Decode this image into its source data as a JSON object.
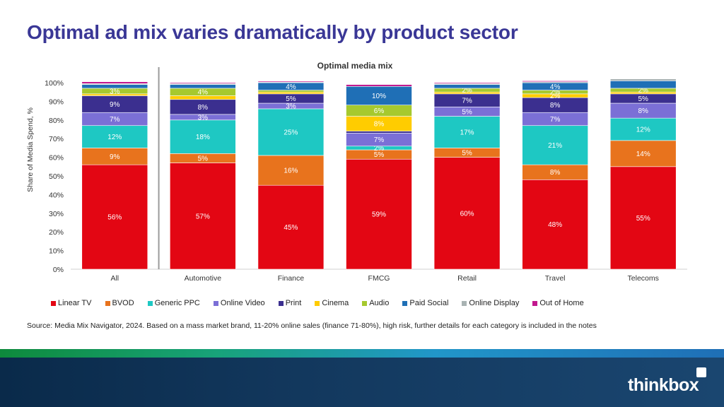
{
  "title": "Optimal ad mix varies dramatically by product sector",
  "source": "Source: Media Mix Navigator, 2024. Based on a mass market brand, 11-20% online sales (finance 71-80%), high risk, further details for each category is included in the notes",
  "brand": "thinkbox",
  "chart_data": {
    "type": "bar",
    "stacked": true,
    "title": "Optimal media mix",
    "ylabel": "Share of Media Spend, %",
    "xlabel": "",
    "ylim": [
      0,
      100
    ],
    "yticks": [
      "0%",
      "10%",
      "20%",
      "30%",
      "40%",
      "50%",
      "60%",
      "70%",
      "80%",
      "90%",
      "100%"
    ],
    "categories": [
      "All",
      "Automotive",
      "Finance",
      "FMCG",
      "Retail",
      "Travel",
      "Telecoms"
    ],
    "legend_position": "bottom",
    "series": [
      {
        "name": "Linear TV",
        "color": "#e30613",
        "values": [
          56,
          57,
          45,
          59,
          60,
          48,
          55
        ],
        "labels": [
          "56%",
          "57%",
          "45%",
          "59%",
          "60%",
          "48%",
          "55%"
        ]
      },
      {
        "name": "BVOD",
        "color": "#e8731d",
        "values": [
          9,
          5,
          16,
          5,
          5,
          8,
          14
        ],
        "labels": [
          "9%",
          "5%",
          "16%",
          "5%",
          "5%",
          "8%",
          "14%"
        ]
      },
      {
        "name": "Generic PPC",
        "color": "#1ec8c3",
        "values": [
          12,
          18,
          25,
          2,
          17,
          21,
          12
        ],
        "labels": [
          "12%",
          "18%",
          "25%",
          "2%",
          "17%",
          "21%",
          "12%"
        ]
      },
      {
        "name": "Online Video",
        "color": "#7b6fd6",
        "values": [
          7,
          3,
          3,
          7,
          5,
          7,
          8
        ],
        "labels": [
          "7%",
          "3%",
          "3%",
          "7%",
          "5%",
          "7%",
          "8%"
        ]
      },
      {
        "name": "Print",
        "color": "#3b2f8f",
        "values": [
          9,
          8,
          5,
          1,
          7,
          8,
          5
        ],
        "labels": [
          "9%",
          "8%",
          "5%",
          "",
          "7%",
          "8%",
          "5%"
        ]
      },
      {
        "name": "Cinema",
        "color": "#ffcc00",
        "values": [
          1,
          2,
          1,
          8,
          1,
          2,
          1
        ],
        "labels": [
          "",
          "",
          "",
          "8%",
          "",
          "2%",
          ""
        ]
      },
      {
        "name": "Audio",
        "color": "#a6c92e",
        "values": [
          3,
          4,
          1,
          6,
          2,
          2,
          2
        ],
        "labels": [
          "3%",
          "4%",
          "",
          "6%",
          "2%",
          "2%",
          "2%"
        ]
      },
      {
        "name": "Paid Social",
        "color": "#1f6fb6",
        "values": [
          2,
          2,
          4,
          10,
          2,
          4,
          4
        ],
        "labels": [
          "",
          "",
          "4%",
          "10%",
          "",
          "4%",
          ""
        ]
      },
      {
        "name": "Online Display",
        "color": "#a9b3b3",
        "values": [
          0.5,
          0.5,
          0.3,
          0,
          0.5,
          0.5,
          1
        ],
        "labels": [
          "",
          "",
          "",
          "",
          "",
          "",
          ""
        ]
      },
      {
        "name": "Out of Home",
        "color": "#c2188e",
        "values": [
          1,
          0.5,
          0.5,
          1,
          0.5,
          0.5,
          0
        ],
        "labels": [
          "",
          "",
          "",
          "",
          "",
          "",
          ""
        ]
      }
    ]
  }
}
